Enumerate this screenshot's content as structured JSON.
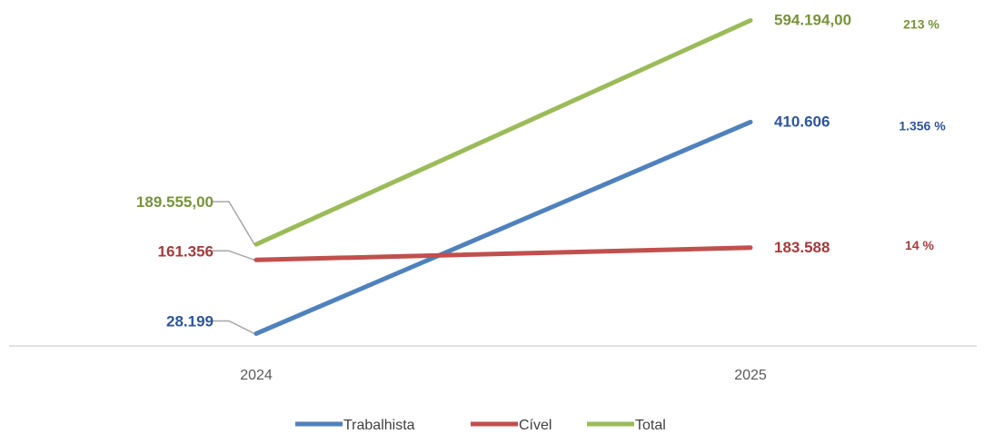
{
  "chart_data": {
    "type": "line",
    "categories": [
      "2024",
      "2025"
    ],
    "series": [
      {
        "name": "Trabalhista",
        "values": [
          28199,
          410606
        ],
        "color": "#4F81BD",
        "data_labels": [
          "28.199",
          "410.606"
        ],
        "change_label": "1.356 %",
        "label_color": "#2F5597"
      },
      {
        "name": "Cível",
        "values": [
          161356,
          183588
        ],
        "color": "#C0504D",
        "data_labels": [
          "161.356",
          "183.588"
        ],
        "change_label": "14 %",
        "label_color": "#A33B3B"
      },
      {
        "name": "Total",
        "values": [
          189555,
          594194
        ],
        "color": "#9BBB59",
        "data_labels": [
          "189.555,00",
          "594.194,00"
        ],
        "change_label": "213 %",
        "label_color": "#77933C"
      }
    ],
    "legend_position": "bottom",
    "grid": false
  }
}
